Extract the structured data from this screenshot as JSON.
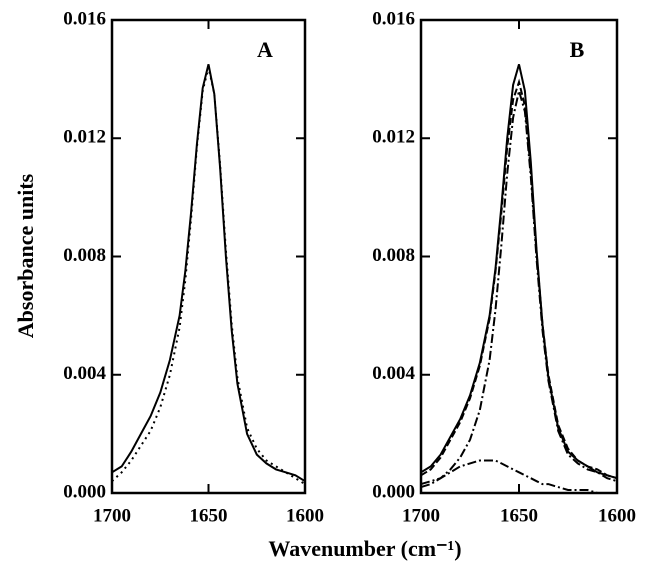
{
  "chart_data": [
    {
      "type": "line",
      "annotation": "A",
      "ylabel": "Absorbance units",
      "xlabel": "Wavenumber (cm⁻¹)",
      "x": [
        1700,
        1695,
        1690,
        1685,
        1680,
        1675,
        1670,
        1665,
        1662,
        1659,
        1656,
        1653,
        1650,
        1647,
        1644,
        1641,
        1638,
        1635,
        1630,
        1625,
        1620,
        1615,
        1610,
        1605,
        1600
      ],
      "xlim": [
        1700,
        1600
      ],
      "xticks": [
        1700,
        1650,
        1600
      ],
      "ylim": [
        0,
        0.016
      ],
      "yticks": [
        {
          "value": 0,
          "label": "0.000"
        },
        {
          "value": 0.004,
          "label": "0.004"
        },
        {
          "value": 0.008,
          "label": "0.008"
        },
        {
          "value": 0.012,
          "label": "0.012"
        },
        {
          "value": 0.016,
          "label": "0.016"
        }
      ],
      "series": [
        {
          "color": "#000000",
          "dash": "solid",
          "values": [
            0.0007,
            0.0009,
            0.0014,
            0.002,
            0.0026,
            0.0034,
            0.0045,
            0.006,
            0.0075,
            0.0095,
            0.0118,
            0.0137,
            0.0145,
            0.0135,
            0.011,
            0.008,
            0.0055,
            0.0037,
            0.002,
            0.0013,
            0.001,
            0.0008,
            0.0007,
            0.0006,
            0.0004
          ]
        },
        {
          "color": "#000000",
          "dash": "dotted",
          "values": [
            0.0004,
            0.0007,
            0.0011,
            0.0016,
            0.0021,
            0.0029,
            0.004,
            0.0056,
            0.0072,
            0.0093,
            0.0117,
            0.0136,
            0.0144,
            0.0135,
            0.0111,
            0.0082,
            0.0057,
            0.0039,
            0.0022,
            0.0015,
            0.0011,
            0.0009,
            0.0007,
            0.0005,
            0.0003
          ]
        }
      ]
    },
    {
      "type": "line",
      "annotation": "B",
      "x": [
        1700,
        1695,
        1690,
        1685,
        1680,
        1675,
        1670,
        1665,
        1662,
        1659,
        1656,
        1653,
        1650,
        1647,
        1644,
        1641,
        1638,
        1635,
        1630,
        1625,
        1620,
        1615,
        1610,
        1605,
        1600
      ],
      "xlim": [
        1700,
        1600
      ],
      "xticks": [
        1700,
        1650,
        1600
      ],
      "ylim": [
        0,
        0.016
      ],
      "yticks": [
        {
          "value": 0,
          "label": "0.000"
        },
        {
          "value": 0.004,
          "label": "0.004"
        },
        {
          "value": 0.008,
          "label": "0.008"
        },
        {
          "value": 0.012,
          "label": "0.012"
        },
        {
          "value": 0.016,
          "label": "0.016"
        }
      ],
      "series": [
        {
          "color": "#000000",
          "dash": "solid",
          "values": [
            0.0007,
            0.0009,
            0.0013,
            0.0019,
            0.0025,
            0.0033,
            0.0044,
            0.006,
            0.0076,
            0.0097,
            0.012,
            0.0138,
            0.0145,
            0.0136,
            0.0112,
            0.0082,
            0.0057,
            0.0039,
            0.0022,
            0.0014,
            0.0011,
            0.0009,
            0.0007,
            0.0006,
            0.0005
          ]
        },
        {
          "color": "#000000",
          "dash": "dashed",
          "values": [
            0.0006,
            0.0008,
            0.0012,
            0.0018,
            0.0024,
            0.0032,
            0.0043,
            0.0059,
            0.0075,
            0.0095,
            0.0117,
            0.0133,
            0.0139,
            0.0131,
            0.0109,
            0.0081,
            0.0057,
            0.004,
            0.0023,
            0.0015,
            0.0011,
            0.0009,
            0.0008,
            0.0006,
            0.0005
          ]
        },
        {
          "color": "#000000",
          "dash": "dashdot",
          "values": [
            0.0002,
            0.0003,
            0.0005,
            0.0008,
            0.0012,
            0.0018,
            0.0028,
            0.0045,
            0.0062,
            0.0084,
            0.0108,
            0.0127,
            0.0136,
            0.0129,
            0.0107,
            0.0079,
            0.0055,
            0.0038,
            0.0021,
            0.0013,
            0.001,
            0.0008,
            0.0007,
            0.0005,
            0.0004
          ]
        },
        {
          "color": "#000000",
          "dash": "dashdot",
          "values": [
            0.0003,
            0.0004,
            0.0005,
            0.0007,
            0.0009,
            0.001,
            0.0011,
            0.0011,
            0.0011,
            0.001,
            0.0009,
            0.0008,
            0.0007,
            0.0006,
            0.0005,
            0.0004,
            0.0003,
            0.0003,
            0.0002,
            0.0001,
            0.0001,
            0.0001,
            0,
            0,
            0
          ]
        }
      ]
    }
  ]
}
